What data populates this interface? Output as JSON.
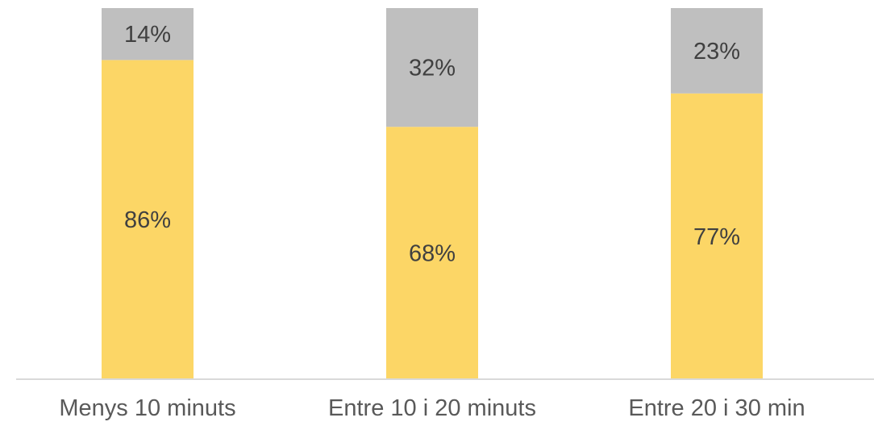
{
  "chart_data": {
    "type": "bar",
    "stacked": true,
    "percent_stacked": true,
    "categories": [
      "Menys 10 minuts",
      "Entre 10 i 20 minuts",
      "Entre 20 i 30 min"
    ],
    "series": [
      {
        "values": [
          86,
          68,
          77
        ],
        "labels": [
          "86%",
          "68%",
          "77%"
        ],
        "color": "#FCD666"
      },
      {
        "values": [
          14,
          32,
          23
        ],
        "labels": [
          "14%",
          "32%",
          "23%"
        ],
        "color": "#BFBFBF"
      }
    ],
    "ylim": [
      0,
      100
    ],
    "grid": false,
    "legend": "none",
    "axis_color": "#D9D9D9"
  }
}
